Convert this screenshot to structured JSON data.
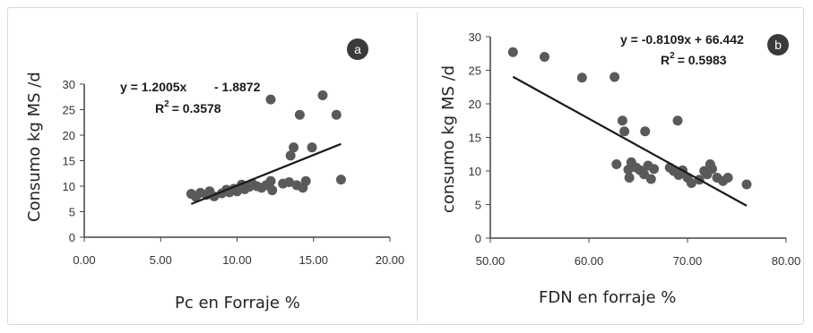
{
  "colors": {
    "point": "#5a5a5a",
    "line": "#1a1a1a",
    "axis": "#444444",
    "badge": "#3a3a3a"
  },
  "chart_data": [
    {
      "type": "scatter",
      "badge": "a",
      "xlabel": "Pc en Forraje %",
      "ylabel": "Consumo kg MS /d",
      "xlim": [
        0,
        20
      ],
      "ylim": [
        0,
        30
      ],
      "x_ticks": [
        "0.00",
        "5.00",
        "10.00",
        "15.00",
        "20.00"
      ],
      "y_ticks": [
        "0",
        "5",
        "10",
        "15",
        "20",
        "25",
        "30"
      ],
      "equation": {
        "lhs": "y = 1.2005x",
        "rhs": "- 1.8872"
      },
      "r2": {
        "label": "R",
        "power": "2",
        "value": "= 0.3578"
      },
      "trendline": {
        "slope": 1.2005,
        "intercept": -1.8872,
        "x_range": [
          7.0,
          16.8
        ]
      },
      "points": [
        [
          7.0,
          8.5
        ],
        [
          7.3,
          7.9
        ],
        [
          7.6,
          8.7
        ],
        [
          8.0,
          8.3
        ],
        [
          8.2,
          9.0
        ],
        [
          8.5,
          8.0
        ],
        [
          9.0,
          8.6
        ],
        [
          9.3,
          9.3
        ],
        [
          9.5,
          8.8
        ],
        [
          9.8,
          9.5
        ],
        [
          10.0,
          9.0
        ],
        [
          10.3,
          10.3
        ],
        [
          10.5,
          9.4
        ],
        [
          10.8,
          9.9
        ],
        [
          11.0,
          10.5
        ],
        [
          11.3,
          10.0
        ],
        [
          11.6,
          9.7
        ],
        [
          11.9,
          10.2
        ],
        [
          12.2,
          11.0
        ],
        [
          12.3,
          9.2
        ],
        [
          12.2,
          27.0
        ],
        [
          13.0,
          10.5
        ],
        [
          13.4,
          10.8
        ],
        [
          13.5,
          16.0
        ],
        [
          13.7,
          17.6
        ],
        [
          13.9,
          10.2
        ],
        [
          14.1,
          24.0
        ],
        [
          14.3,
          9.7
        ],
        [
          14.5,
          11.0
        ],
        [
          14.9,
          17.6
        ],
        [
          15.6,
          27.8
        ],
        [
          16.5,
          24.0
        ],
        [
          16.8,
          11.3
        ]
      ]
    },
    {
      "type": "scatter",
      "badge": "b",
      "xlabel": "FDN en forraje  %",
      "ylabel": "consumo kg MS /d",
      "xlim": [
        50,
        80
      ],
      "ylim": [
        0,
        30
      ],
      "x_ticks": [
        "50.00",
        "60.00",
        "70.00",
        "80.00"
      ],
      "y_ticks": [
        "0",
        "5",
        "10",
        "15",
        "20",
        "25",
        "30"
      ],
      "equation": {
        "lhs": "y =  -0.8109x + 66.442",
        "rhs": ""
      },
      "r2": {
        "label": "R",
        "power": "2",
        "value": "= 0.5983"
      },
      "trendline": {
        "slope": -0.8109,
        "intercept": 66.442,
        "x_range": [
          52.3,
          76.0
        ]
      },
      "points": [
        [
          52.3,
          27.7
        ],
        [
          55.5,
          27.0
        ],
        [
          59.3,
          23.9
        ],
        [
          62.6,
          24.0
        ],
        [
          62.8,
          11.0
        ],
        [
          63.4,
          17.5
        ],
        [
          63.6,
          15.9
        ],
        [
          64.0,
          10.2
        ],
        [
          64.1,
          9.0
        ],
        [
          64.3,
          11.3
        ],
        [
          64.8,
          10.5
        ],
        [
          65.2,
          10.1
        ],
        [
          65.6,
          9.5
        ],
        [
          65.7,
          15.9
        ],
        [
          66.0,
          10.8
        ],
        [
          66.3,
          8.8
        ],
        [
          66.6,
          10.3
        ],
        [
          68.2,
          10.5
        ],
        [
          68.6,
          10.0
        ],
        [
          69.0,
          17.5
        ],
        [
          69.1,
          9.4
        ],
        [
          69.5,
          10.1
        ],
        [
          70.0,
          9.0
        ],
        [
          70.4,
          8.2
        ],
        [
          71.2,
          8.7
        ],
        [
          71.7,
          10.0
        ],
        [
          72.0,
          9.5
        ],
        [
          72.3,
          11.0
        ],
        [
          72.5,
          10.3
        ],
        [
          73.0,
          9.0
        ],
        [
          73.6,
          8.5
        ],
        [
          74.1,
          9.0
        ],
        [
          76.0,
          8.0
        ]
      ]
    }
  ]
}
